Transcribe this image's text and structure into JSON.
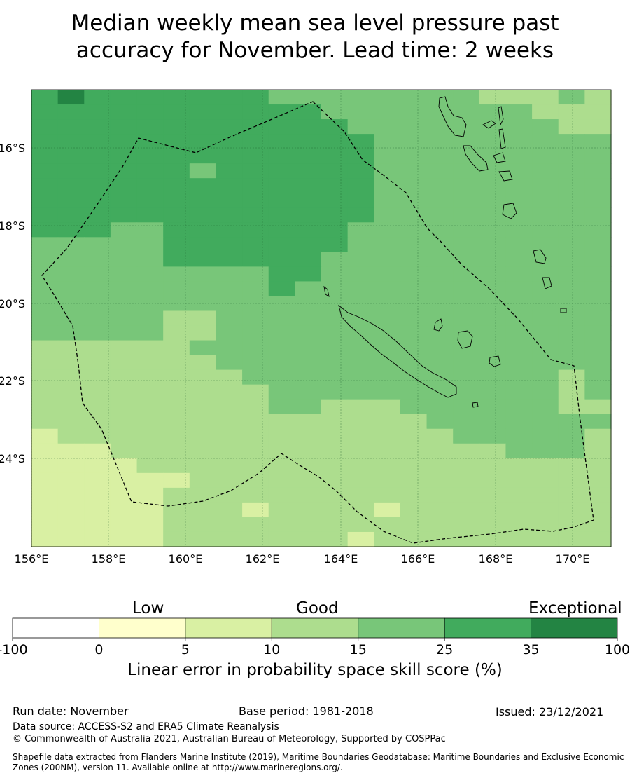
{
  "title": {
    "line1": "Median weekly mean sea level pressure past",
    "line2": "accuracy for November. Lead time: 2 weeks"
  },
  "axes": {
    "lon_ticks": [
      "156°E",
      "158°E",
      "160°E",
      "162°E",
      "164°E",
      "166°E",
      "168°E",
      "170°E"
    ],
    "lat_ticks": [
      "16°S",
      "18°S",
      "20°S",
      "22°S",
      "24°S"
    ]
  },
  "colorbar": {
    "categories": [
      "Low",
      "Good",
      "Exceptional"
    ],
    "tick_labels": [
      "-100",
      "0",
      "5",
      "10",
      "15",
      "25",
      "35",
      "100"
    ],
    "colors": [
      "#ffffff",
      "#ffffcc",
      "#d9f0a3",
      "#addd8e",
      "#78c679",
      "#41ab5d",
      "#238443"
    ],
    "title": "Linear error in probability space skill score (%)"
  },
  "footer": {
    "run_date": "Run date: November",
    "base_period": "Base period: 1981-2018",
    "issued": "Issued: 23/12/2021",
    "data_source": "Data source: ACCESS-S2 and ERA5 Climate Reanalysis",
    "copyright": "© Commonwealth of Australia 2021, Australian Bureau of Meteorology, Supported by COSPPac",
    "shapefile_line1": "Shapefile data extracted from Flanders Marine Institute (2019), Maritime Boundaries Geodatabase: Maritime Boundaries and Exclusive Economic",
    "shapefile_line2": "Zones (200NM), version 11. Available online at http://www.marineregions.org/."
  },
  "map_data": {
    "grid_note": "skill category index per cell (0=0-5, 1=5-10, 2=10-15, 3=15-25, 4=25-35, 5=35-100)",
    "rows": [
      "4544444443333333322232",
      "4444444444433333333222",
      "4444444444443333333322",
      "4444444444444333333333",
      "4444444444444333333333",
      "4444443444444333333333",
      "4444444444444333333333",
      "4444444444444333333333",
      "4444444444444333333333",
      "4443344444443333333333",
      "3333344444443333333333",
      "3333344444433333333333",
      "3333333334433333333333",
      "3333333334333333333333",
      "3333333333333333333333",
      "3333322333333333333333",
      "3333322333333333333333",
      "2222223333333333333333",
      "2222222333333333333333",
      "2222222233333333333323",
      "2222222223333333333323",
      "2222222223322233333322",
      "2222222222222223333333",
      "1222222222222222333332",
      "1112222222222222223332",
      "1111222222222222222222",
      "1111112222222222222222",
      "1111122222222222222222",
      "1111122212222122222222",
      "1111122222222222222222",
      "1111122222221222222222"
    ]
  }
}
